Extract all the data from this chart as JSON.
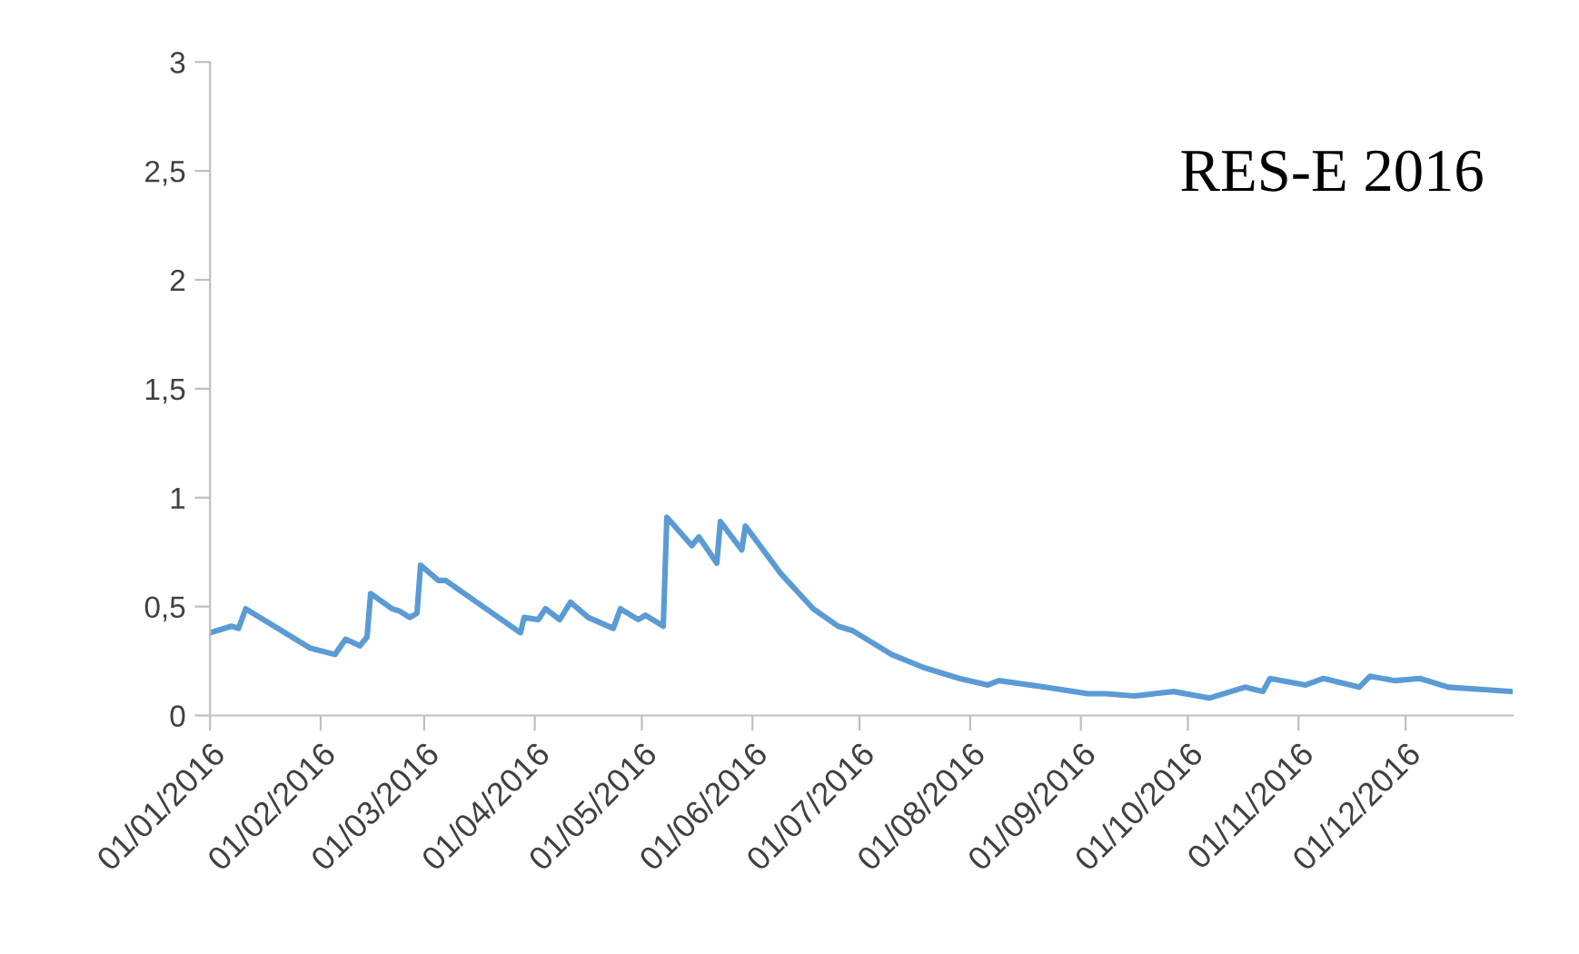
{
  "chart_data": {
    "type": "line",
    "annotations": [
      "RES-E 2016"
    ],
    "x": [
      "2016-01-01",
      "2016-01-07",
      "2016-01-09",
      "2016-01-11",
      "2016-01-13",
      "2016-01-29",
      "2016-02-05",
      "2016-02-08",
      "2016-02-12",
      "2016-02-14",
      "2016-02-15",
      "2016-02-21",
      "2016-02-23",
      "2016-02-26",
      "2016-02-28",
      "2016-02-29",
      "2016-03-05",
      "2016-03-07",
      "2016-03-28",
      "2016-03-29",
      "2016-04-02",
      "2016-04-04",
      "2016-04-08",
      "2016-04-11",
      "2016-04-16",
      "2016-04-23",
      "2016-04-25",
      "2016-04-30",
      "2016-05-02",
      "2016-05-07",
      "2016-05-08",
      "2016-05-15",
      "2016-05-17",
      "2016-05-22",
      "2016-05-23",
      "2016-05-29",
      "2016-05-30",
      "2016-06-09",
      "2016-06-18",
      "2016-06-25",
      "2016-06-29",
      "2016-07-10",
      "2016-07-19",
      "2016-07-29",
      "2016-08-06",
      "2016-08-09",
      "2016-08-22",
      "2016-09-03",
      "2016-09-08",
      "2016-09-16",
      "2016-09-27",
      "2016-10-07",
      "2016-10-17",
      "2016-10-22",
      "2016-10-24",
      "2016-11-03",
      "2016-11-08",
      "2016-11-18",
      "2016-11-21",
      "2016-11-28",
      "2016-12-05",
      "2016-12-13",
      "2016-12-22",
      "2016-12-31"
    ],
    "series": [
      {
        "color": "#5b9bd5",
        "values": [
          0.38,
          0.41,
          0.4,
          0.49,
          0.47,
          0.31,
          0.28,
          0.35,
          0.32,
          0.36,
          0.56,
          0.49,
          0.48,
          0.45,
          0.47,
          0.69,
          0.62,
          0.62,
          0.38,
          0.45,
          0.44,
          0.49,
          0.44,
          0.52,
          0.45,
          0.4,
          0.49,
          0.44,
          0.46,
          0.41,
          0.91,
          0.78,
          0.82,
          0.7,
          0.89,
          0.76,
          0.87,
          0.65,
          0.49,
          0.41,
          0.39,
          0.28,
          0.22,
          0.17,
          0.14,
          0.16,
          0.13,
          0.1,
          0.1,
          0.09,
          0.11,
          0.08,
          0.13,
          0.11,
          0.17,
          0.14,
          0.17,
          0.13,
          0.18,
          0.16,
          0.17,
          0.13,
          0.12,
          0.11
        ]
      }
    ],
    "xlim": [
      "2016-01-01",
      "2016-12-31"
    ],
    "xticks": [
      {
        "value": "2016-01-01",
        "label": "01/01/2016"
      },
      {
        "value": "2016-02-01",
        "label": "01/02/2016"
      },
      {
        "value": "2016-03-01",
        "label": "01/03/2016"
      },
      {
        "value": "2016-04-01",
        "label": "01/04/2016"
      },
      {
        "value": "2016-05-01",
        "label": "01/05/2016"
      },
      {
        "value": "2016-06-01",
        "label": "01/06/2016"
      },
      {
        "value": "2016-07-01",
        "label": "01/07/2016"
      },
      {
        "value": "2016-08-01",
        "label": "01/08/2016"
      },
      {
        "value": "2016-09-01",
        "label": "01/09/2016"
      },
      {
        "value": "2016-10-01",
        "label": "01/10/2016"
      },
      {
        "value": "2016-11-01",
        "label": "01/11/2016"
      },
      {
        "value": "2016-12-01",
        "label": "01/12/2016"
      }
    ],
    "ylim": [
      0,
      3
    ],
    "yticks": [
      0,
      {
        "value": 0.5,
        "label": "0,5"
      },
      1,
      {
        "value": 1.5,
        "label": "1,5"
      },
      2,
      {
        "value": 2.5,
        "label": "2,5"
      },
      3
    ],
    "grid": false,
    "marker": "none",
    "line_style": "solid"
  }
}
